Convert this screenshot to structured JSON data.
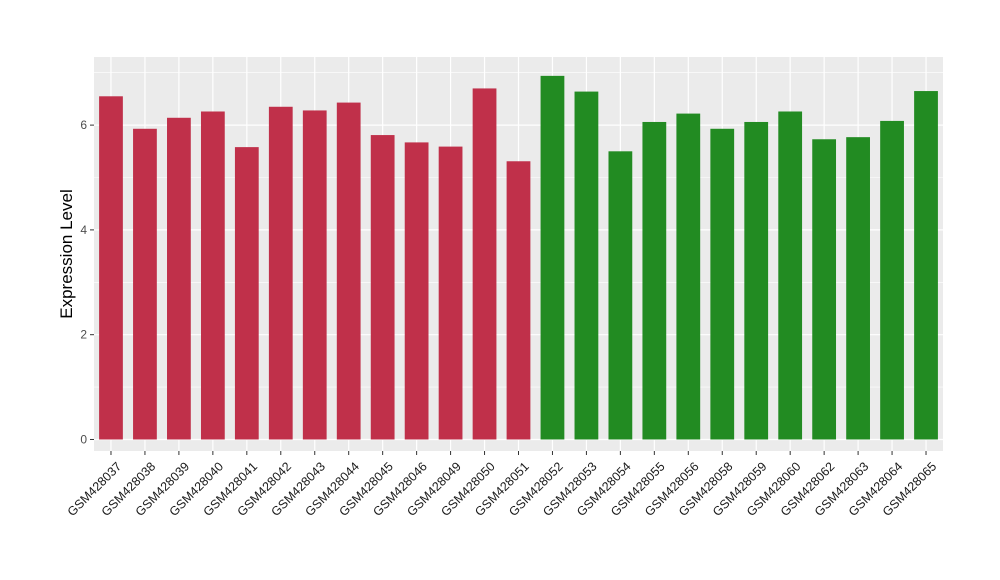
{
  "chart_data": {
    "type": "bar",
    "title": "",
    "xlabel": "",
    "ylabel": "Expression Level",
    "ylim": [
      -0.22,
      7.3
    ],
    "yticks": [
      0,
      2,
      4,
      6
    ],
    "grid": true,
    "legend": "none",
    "colors": {
      "group1": "#c0304a",
      "group2": "#228b22",
      "panel": "#ebebeb",
      "gridline": "#ffffff"
    },
    "categories": [
      "GSM428037",
      "GSM428038",
      "GSM428039",
      "GSM428040",
      "GSM428041",
      "GSM428042",
      "GSM428043",
      "GSM428044",
      "GSM428045",
      "GSM428046",
      "GSM428049",
      "GSM428050",
      "GSM428051",
      "GSM428052",
      "GSM428053",
      "GSM428054",
      "GSM428055",
      "GSM428056",
      "GSM428058",
      "GSM428059",
      "GSM428060",
      "GSM428062",
      "GSM428063",
      "GSM428064",
      "GSM428065"
    ],
    "values": [
      6.55,
      5.93,
      6.14,
      6.26,
      5.58,
      6.35,
      6.28,
      6.43,
      5.81,
      5.67,
      5.59,
      6.7,
      5.31,
      6.94,
      6.64,
      5.5,
      6.06,
      6.22,
      5.93,
      6.06,
      6.26,
      5.73,
      5.77,
      6.08,
      6.65
    ],
    "groups": [
      "group1",
      "group1",
      "group1",
      "group1",
      "group1",
      "group1",
      "group1",
      "group1",
      "group1",
      "group1",
      "group1",
      "group1",
      "group1",
      "group2",
      "group2",
      "group2",
      "group2",
      "group2",
      "group2",
      "group2",
      "group2",
      "group2",
      "group2",
      "group2",
      "group2"
    ]
  }
}
